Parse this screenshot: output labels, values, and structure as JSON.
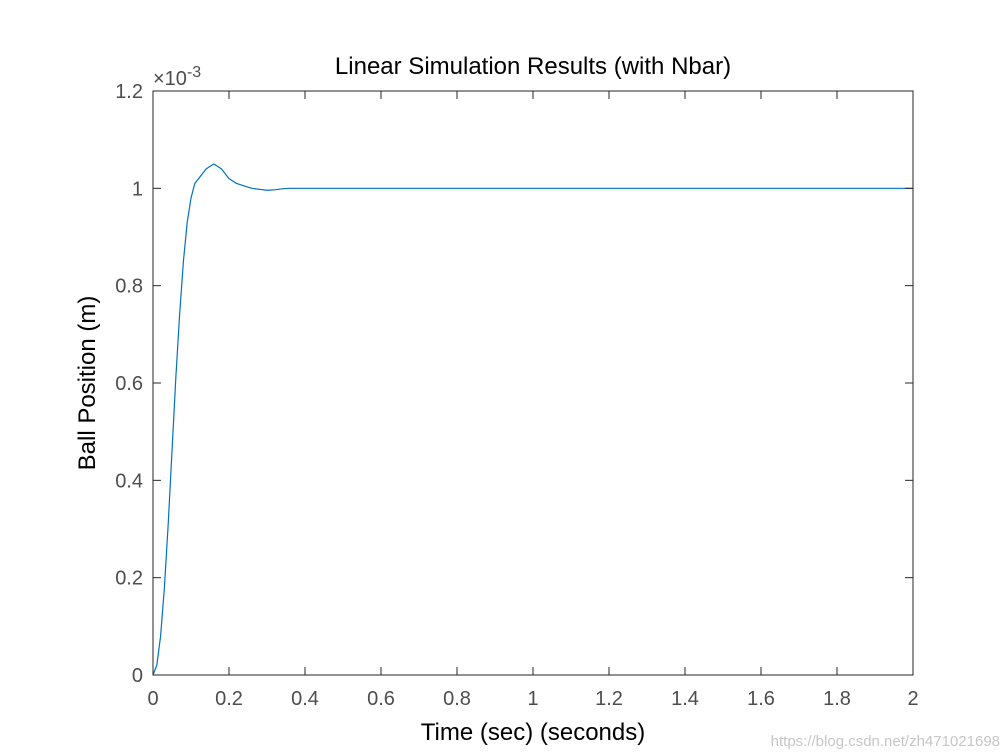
{
  "chart_data": {
    "type": "line",
    "title": "Linear Simulation Results (with Nbar)",
    "xlabel": "Time (sec) (seconds)",
    "ylabel": "Ball Position (m)",
    "xlim": [
      0,
      2
    ],
    "ylim": [
      0,
      0.0012
    ],
    "y_exponent_label": "×10-3",
    "x_ticks": [
      0,
      0.2,
      0.4,
      0.6,
      0.8,
      1,
      1.2,
      1.4,
      1.6,
      1.8,
      2
    ],
    "x_tick_labels": [
      "0",
      "0.2",
      "0.4",
      "0.6",
      "0.8",
      "1",
      "1.2",
      "1.4",
      "1.6",
      "1.8",
      "2"
    ],
    "y_ticks": [
      0,
      0.0002,
      0.0004,
      0.0006,
      0.0008,
      0.001,
      0.0012
    ],
    "y_tick_labels": [
      "0",
      "0.2",
      "0.4",
      "0.6",
      "0.8",
      "1",
      "1.2"
    ],
    "grid": false,
    "series": [
      {
        "color": "#0072bd",
        "x": [
          0,
          0.01,
          0.02,
          0.03,
          0.04,
          0.05,
          0.06,
          0.07,
          0.08,
          0.09,
          0.1,
          0.11,
          0.12,
          0.13,
          0.14,
          0.15,
          0.16,
          0.17,
          0.18,
          0.19,
          0.2,
          0.22,
          0.24,
          0.26,
          0.28,
          0.3,
          0.32,
          0.34,
          0.36,
          0.4,
          0.45,
          0.5,
          0.6,
          0.8,
          1.0,
          1.2,
          1.4,
          1.6,
          1.8,
          2.0
        ],
        "y": [
          0,
          2e-05,
          8e-05,
          0.00018,
          0.00031,
          0.00046,
          0.00061,
          0.00074,
          0.00085,
          0.00093,
          0.00098,
          0.00101,
          0.00102,
          0.00103,
          0.00104,
          0.001045,
          0.00105,
          0.001045,
          0.00104,
          0.00103,
          0.00102,
          0.00101,
          0.001005,
          0.001,
          0.000998,
          0.000996,
          0.000997,
          0.000999,
          0.001,
          0.001,
          0.001,
          0.001,
          0.001,
          0.001,
          0.001,
          0.001,
          0.001,
          0.001,
          0.001,
          0.001
        ]
      }
    ]
  },
  "watermark": "https://blog.csdn.net/zh471021698"
}
